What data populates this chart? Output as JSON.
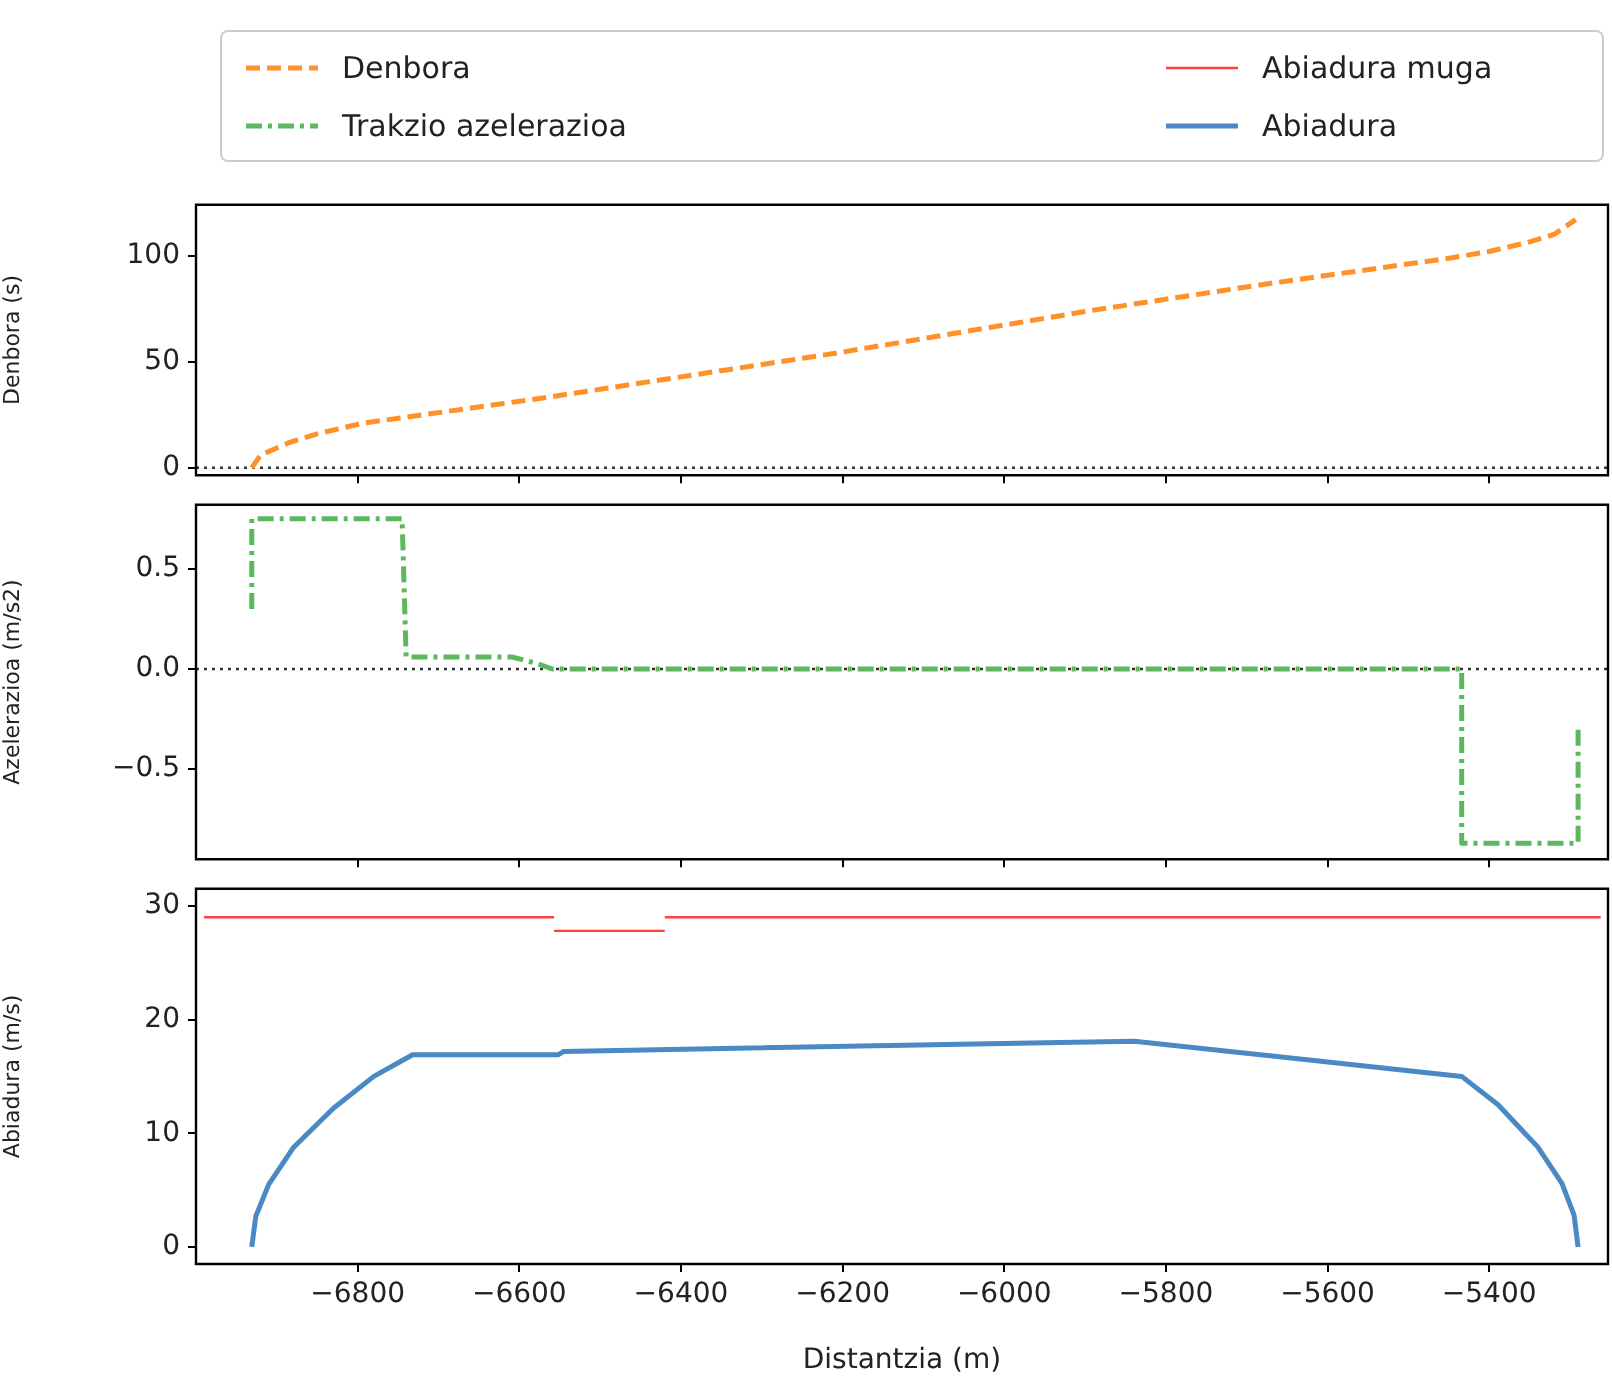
{
  "chart_data": [
    {
      "type": "line",
      "ylabel": "Denbora (s)",
      "legend": "top",
      "tick_labels": "y",
      "xlim": [
        -7000,
        -5253
      ],
      "xticks": [
        {
          "value": -6800,
          "label": null
        },
        {
          "value": -6600,
          "label": null
        },
        {
          "value": -6400,
          "label": null
        },
        {
          "value": -6200,
          "label": null
        },
        {
          "value": -6000,
          "label": null
        },
        {
          "value": -5800,
          "label": null
        },
        {
          "value": -5600,
          "label": null
        },
        {
          "value": -5400,
          "label": null
        }
      ],
      "ylim": [
        -3.5,
        124
      ],
      "yticks": [
        0,
        50,
        100
      ],
      "ref_lines": [
        {
          "axis": "y",
          "value": 0,
          "color": "#333333",
          "line_style": "dotted"
        }
      ],
      "series": [
        {
          "name": "Denbora",
          "color": "#ff9129",
          "line_style": "dashed",
          "x": [
            -6931,
            -6920,
            -6884,
            -6850,
            -6794,
            -6700,
            -6569,
            -6209,
            -5895,
            -5670,
            -5446,
            -5400,
            -5355,
            -5320,
            -5293
          ],
          "values": [
            0,
            6,
            12,
            16,
            21,
            26,
            33,
            54,
            74,
            87,
            99,
            102,
            106,
            110,
            117
          ]
        }
      ]
    },
    {
      "type": "line",
      "ylabel": "Azelerazioa (m/s2)",
      "legend": "top",
      "tick_labels": "y",
      "xlim": [
        -7000,
        -5253
      ],
      "xticks": [
        {
          "value": -6800,
          "label": null
        },
        {
          "value": -6600,
          "label": null
        },
        {
          "value": -6400,
          "label": null
        },
        {
          "value": -6200,
          "label": null
        },
        {
          "value": -6000,
          "label": null
        },
        {
          "value": -5800,
          "label": null
        },
        {
          "value": -5600,
          "label": null
        },
        {
          "value": -5400,
          "label": null
        }
      ],
      "ylim": [
        -0.95,
        0.82
      ],
      "yticks": [
        {
          "value": -0.5,
          "label": "−0.5"
        },
        {
          "value": 0,
          "label": "0.0"
        },
        {
          "value": 0.5,
          "label": "0.5"
        }
      ],
      "ref_lines": [
        {
          "axis": "y",
          "value": 0,
          "color": "#333333",
          "line_style": "dotted"
        }
      ],
      "series": [
        {
          "name": "Trakzio azelerazioa",
          "color": "#5cb85c",
          "line_style": "dashdot",
          "x": [
            -6931,
            -6931,
            -6745,
            -6740,
            -6609,
            -6580,
            -6559,
            -5434,
            -5434,
            -5290,
            -5290
          ],
          "values": [
            0.3,
            0.75,
            0.75,
            0.06,
            0.06,
            0.03,
            0,
            0,
            -0.87,
            -0.87,
            -0.28
          ]
        }
      ]
    },
    {
      "type": "line",
      "xlabel": "Distantzia (m)",
      "ylabel": "Abiadura (m/s)",
      "legend": "top",
      "xlim": [
        -7000,
        -5253
      ],
      "xticks": [
        {
          "value": -6800,
          "label": "−6800"
        },
        {
          "value": -6600,
          "label": "−6600"
        },
        {
          "value": -6400,
          "label": "−6400"
        },
        {
          "value": -6200,
          "label": "−6200"
        },
        {
          "value": -6000,
          "label": "−6000"
        },
        {
          "value": -5800,
          "label": "−5800"
        },
        {
          "value": -5600,
          "label": "−5600"
        },
        {
          "value": -5400,
          "label": "−5400"
        }
      ],
      "ylim": [
        -1.5,
        31.5
      ],
      "yticks": [
        0,
        10,
        20,
        30
      ],
      "series": [
        {
          "name": "Abiadura muga",
          "color": "#ff4040",
          "line_style": "solid",
          "x": [
            -6990,
            -6557,
            null,
            -6557,
            -6420,
            null,
            -6420,
            -5262
          ],
          "values": [
            29,
            29,
            null,
            27.8,
            27.8,
            null,
            29,
            29
          ]
        },
        {
          "name": "Abiadura",
          "color": "#4a89c4",
          "line_style": "solid",
          "x": [
            -6931,
            -6926,
            -6910,
            -6880,
            -6830,
            -6780,
            -6732,
            -6552,
            -6545,
            -5839,
            -5434,
            -5389,
            -5340,
            -5310,
            -5295,
            -5290
          ],
          "values": [
            0,
            2.7,
            5.5,
            8.7,
            12.2,
            15,
            16.9,
            16.9,
            17.2,
            18.1,
            15,
            12.5,
            8.8,
            5.6,
            2.8,
            0
          ]
        }
      ]
    }
  ]
}
